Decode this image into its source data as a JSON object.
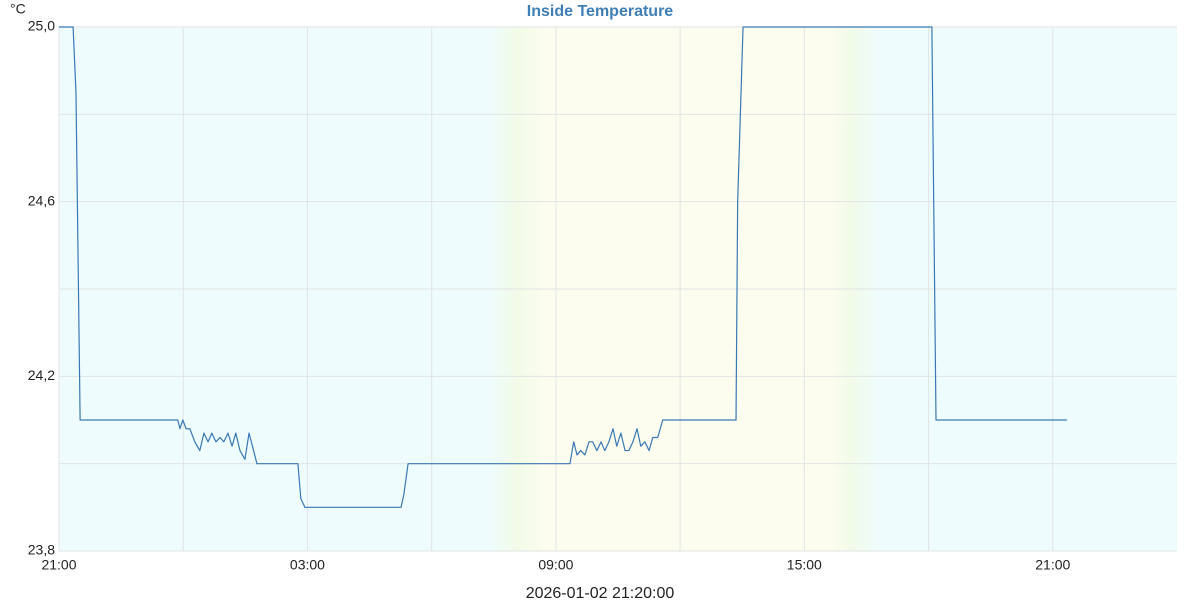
{
  "chart_data": {
    "type": "line",
    "title": "Inside Temperature",
    "y_unit": "°C",
    "x_label": "2026-01-02 21:20:00",
    "xlim": [
      0,
      27
    ],
    "xticks": [
      {
        "value": 0,
        "label": "21:00"
      },
      {
        "value": 6,
        "label": "03:00"
      },
      {
        "value": 12,
        "label": "09:00"
      },
      {
        "value": 18,
        "label": "15:00"
      },
      {
        "value": 24,
        "label": "21:00"
      }
    ],
    "ylim": [
      23.8,
      25.0
    ],
    "yticks": [
      {
        "value": 23.8,
        "label": "23,8"
      },
      {
        "value": 24.2,
        "label": "24,2"
      },
      {
        "value": 24.6,
        "label": "24,6"
      },
      {
        "value": 25.0,
        "label": "25,0"
      }
    ],
    "grid": true,
    "series": [
      {
        "name": "Inside Temperature",
        "color": "#3a78b4",
        "x": [
          0,
          0.34,
          0.41,
          0.51,
          2.87,
          2.92,
          2.99,
          3.07,
          3.16,
          3.28,
          3.4,
          3.5,
          3.6,
          3.69,
          3.79,
          3.89,
          3.98,
          4.08,
          4.18,
          4.27,
          4.37,
          4.49,
          4.59,
          4.78,
          5.77,
          5.84,
          5.94,
          8.26,
          8.33,
          8.43,
          12.34,
          12.43,
          12.51,
          12.6,
          12.7,
          12.8,
          12.89,
          12.99,
          13.09,
          13.18,
          13.28,
          13.38,
          13.47,
          13.57,
          13.67,
          13.76,
          13.86,
          13.96,
          14.05,
          14.15,
          14.25,
          14.34,
          14.46,
          14.58,
          16.35,
          16.39,
          16.52,
          21.08,
          21.18,
          24.34
        ],
        "values": [
          25.0,
          25.0,
          24.85,
          24.1,
          24.1,
          24.08,
          24.1,
          24.08,
          24.08,
          24.05,
          24.03,
          24.07,
          24.05,
          24.07,
          24.05,
          24.06,
          24.05,
          24.07,
          24.04,
          24.07,
          24.03,
          24.01,
          24.07,
          24.0,
          24.0,
          23.92,
          23.9,
          23.9,
          23.93,
          24.0,
          24.0,
          24.05,
          24.02,
          24.03,
          24.02,
          24.05,
          24.05,
          24.03,
          24.05,
          24.03,
          24.05,
          24.08,
          24.04,
          24.07,
          24.03,
          24.03,
          24.05,
          24.08,
          24.04,
          24.05,
          24.03,
          24.06,
          24.06,
          24.1,
          24.1,
          24.6,
          25.0,
          25.0,
          24.1,
          24.1
        ]
      }
    ]
  }
}
